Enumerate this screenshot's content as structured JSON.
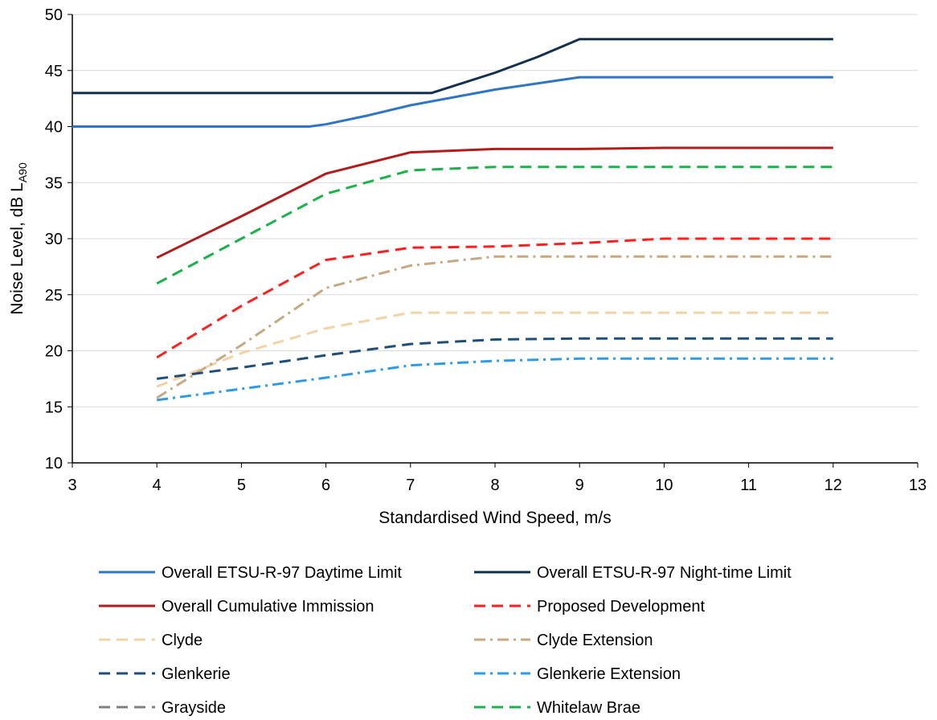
{
  "chart_data": {
    "type": "line",
    "xlabel": "Standardised Wind Speed, m/s",
    "ylabel": {
      "main": "Noise Level, dB L",
      "sub": "A90"
    },
    "xlim": [
      3,
      13
    ],
    "ylim": [
      10,
      50
    ],
    "xticks": [
      "3",
      "4",
      "5",
      "6",
      "7",
      "8",
      "9",
      "10",
      "11",
      "12",
      "13"
    ],
    "yticks": [
      "10",
      "15",
      "20",
      "25",
      "30",
      "35",
      "40",
      "45",
      "50"
    ],
    "grid": "horizontal",
    "legend_position": "bottom",
    "series": [
      {
        "name": "Overall ETSU-R-97 Daytime Limit",
        "color": "#2E75C6",
        "dash": "solid",
        "x": [
          3,
          4,
          5,
          5.8,
          6,
          6.5,
          7,
          8,
          9,
          10,
          11,
          12
        ],
        "y": [
          40,
          40,
          40,
          40,
          40.2,
          41,
          41.9,
          43.3,
          44.4,
          44.4,
          44.4,
          44.4
        ]
      },
      {
        "name": "Overall ETSU-R-97 Night-time Limit",
        "color": "#12304F",
        "dash": "solid",
        "x": [
          3,
          4,
          5,
          6,
          7,
          7.25,
          8,
          8.5,
          9,
          10,
          11,
          12
        ],
        "y": [
          43,
          43,
          43,
          43,
          43,
          43,
          44.8,
          46.2,
          47.8,
          47.8,
          47.8,
          47.8
        ]
      },
      {
        "name": "Overall Cumulative Immission",
        "color": "#B21C1C",
        "dash": "solid",
        "x": [
          4,
          5,
          6,
          7,
          8,
          9,
          10,
          11,
          12
        ],
        "y": [
          28.3,
          32,
          35.8,
          37.7,
          38,
          38,
          38.1,
          38.1,
          38.1
        ]
      },
      {
        "name": "Proposed Development",
        "color": "#FF1F1F",
        "dash": "dash",
        "x": [
          4,
          5,
          6,
          7,
          8,
          9,
          10,
          11,
          12
        ],
        "y": [
          19.4,
          24,
          28.1,
          29.2,
          29.3,
          29.6,
          30,
          30,
          30
        ]
      },
      {
        "name": "Clyde",
        "color": "#F2D3A5",
        "dash": "dash",
        "x": [
          4,
          5,
          6,
          7,
          8,
          9,
          10,
          11,
          12
        ],
        "y": [
          16.8,
          19.8,
          22,
          23.4,
          23.4,
          23.4,
          23.4,
          23.4,
          23.4
        ]
      },
      {
        "name": "Clyde Extension",
        "color": "#C4A983",
        "dash": "dashdot",
        "x": [
          4,
          5,
          6,
          7,
          8,
          9,
          10,
          11,
          12
        ],
        "y": [
          15.8,
          20.5,
          25.6,
          27.6,
          28.4,
          28.4,
          28.4,
          28.4,
          28.4
        ]
      },
      {
        "name": "Glenkerie",
        "color": "#1F4E79",
        "dash": "dash",
        "x": [
          4,
          5,
          6,
          7,
          8,
          9,
          10,
          11,
          12
        ],
        "y": [
          17.5,
          18.5,
          19.6,
          20.6,
          21,
          21.1,
          21.1,
          21.1,
          21.1
        ]
      },
      {
        "name": "Glenkerie Extension",
        "color": "#2E9BE8",
        "dash": "dashdot",
        "x": [
          4,
          5,
          6,
          7,
          8,
          9,
          10,
          11,
          12
        ],
        "y": [
          15.6,
          16.6,
          17.6,
          18.7,
          19.1,
          19.3,
          19.3,
          19.3,
          19.3
        ]
      },
      {
        "name": "Grayside",
        "color": "#808080",
        "dash": "dash",
        "x": [],
        "y": []
      },
      {
        "name": "Whitelaw Brae",
        "color": "#1BB24B",
        "dash": "dash",
        "x": [
          4,
          5,
          6,
          7,
          8,
          9,
          10,
          11,
          12
        ],
        "y": [
          26,
          30,
          34,
          36.1,
          36.4,
          36.4,
          36.4,
          36.4,
          36.4
        ]
      }
    ]
  }
}
